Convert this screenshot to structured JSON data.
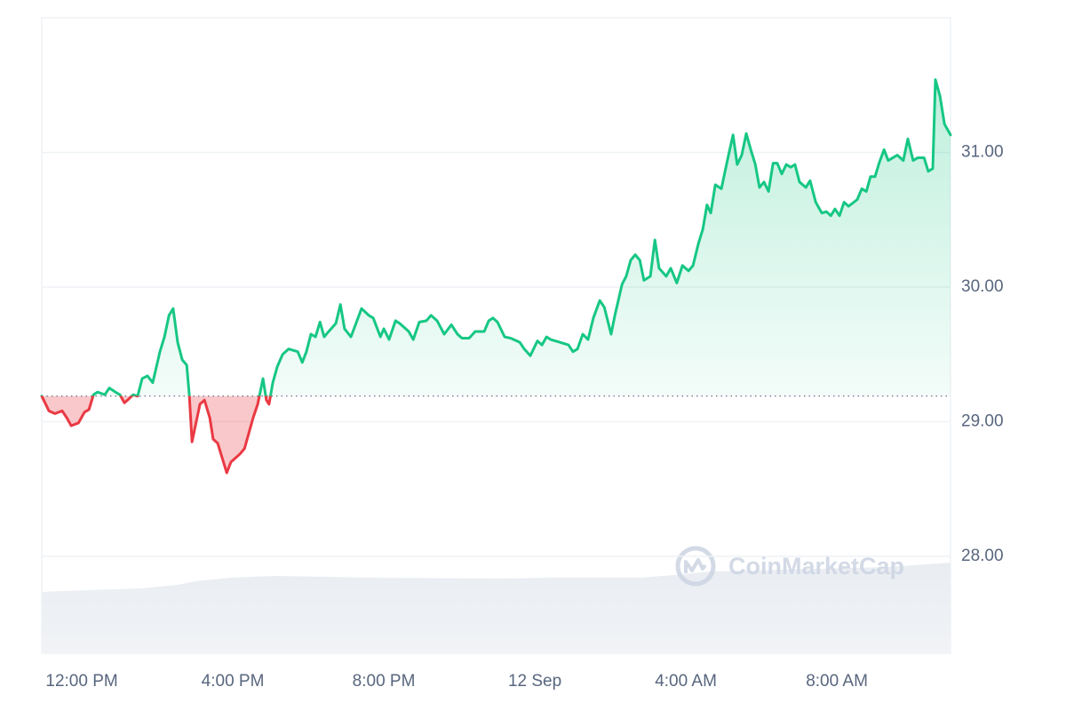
{
  "chart_data": {
    "type": "line",
    "watermark": "CoinMarketCap",
    "up_color": "#16c784",
    "down_color": "#ea3943",
    "reference_line": 29.19,
    "xlim": [
      -1.06,
      23.01
    ],
    "xticks": [
      {
        "value": 0,
        "label": "12:00 PM"
      },
      {
        "value": 4,
        "label": "4:00 PM"
      },
      {
        "value": 8,
        "label": "8:00 PM"
      },
      {
        "value": 12,
        "label": "12 Sep"
      },
      {
        "value": 16,
        "label": "4:00 AM"
      },
      {
        "value": 20,
        "label": "8:00 AM"
      }
    ],
    "ylim": [
      27.28,
      32.0
    ],
    "yticks": [
      {
        "value": 28,
        "label": "28.00"
      },
      {
        "value": 29,
        "label": "29.00"
      },
      {
        "value": 30,
        "label": "30.00"
      },
      {
        "value": 31,
        "label": "31.00"
      }
    ],
    "grid": true,
    "x": [
      -1.06,
      -0.87,
      -0.71,
      -0.52,
      -0.4,
      -0.28,
      -0.09,
      0.07,
      0.19,
      0.31,
      0.42,
      0.61,
      0.73,
      0.89,
      1.01,
      1.13,
      1.25,
      1.36,
      1.48,
      1.6,
      1.74,
      1.88,
      2.07,
      2.19,
      2.31,
      2.42,
      2.54,
      2.66,
      2.78,
      2.85,
      2.92,
      3.01,
      3.13,
      3.25,
      3.39,
      3.48,
      3.6,
      3.72,
      3.84,
      3.95,
      4.07,
      4.19,
      4.31,
      4.42,
      4.54,
      4.66,
      4.8,
      4.89,
      4.96,
      5.06,
      5.18,
      5.32,
      5.48,
      5.72,
      5.84,
      5.95,
      6.07,
      6.19,
      6.31,
      6.42,
      6.54,
      6.73,
      6.85,
      6.96,
      7.13,
      7.25,
      7.41,
      7.6,
      7.72,
      7.91,
      8.0,
      8.14,
      8.31,
      8.42,
      8.54,
      8.66,
      8.78,
      8.94,
      9.13,
      9.25,
      9.41,
      9.6,
      9.79,
      9.95,
      10.07,
      10.26,
      10.42,
      10.66,
      10.78,
      10.89,
      11.01,
      11.2,
      11.36,
      11.6,
      11.72,
      11.88,
      12.07,
      12.19,
      12.31,
      12.42,
      12.66,
      12.89,
      13.01,
      13.13,
      13.27,
      13.41,
      13.55,
      13.72,
      13.84,
      14.02,
      14.12,
      14.31,
      14.42,
      14.54,
      14.66,
      14.78,
      14.89,
      15.06,
      15.18,
      15.29,
      15.48,
      15.6,
      15.76,
      15.91,
      16.07,
      16.19,
      16.33,
      16.45,
      16.56,
      16.66,
      16.78,
      16.94,
      17.13,
      17.25,
      17.36,
      17.48,
      17.6,
      17.72,
      17.84,
      17.95,
      18.07,
      18.19,
      18.31,
      18.42,
      18.54,
      18.66,
      18.78,
      18.89,
      19.01,
      19.18,
      19.29,
      19.44,
      19.6,
      19.72,
      19.84,
      19.95,
      20.07,
      20.19,
      20.31,
      20.54,
      20.66,
      20.78,
      20.89,
      21.01,
      21.13,
      21.25,
      21.36,
      21.48,
      21.6,
      21.76,
      21.88,
      22.02,
      22.14,
      22.31,
      22.42,
      22.54,
      22.61,
      22.73,
      22.85,
      23.01
    ],
    "values": [
      29.19,
      29.08,
      29.06,
      29.08,
      29.03,
      28.97,
      28.99,
      29.07,
      29.09,
      29.2,
      29.22,
      29.2,
      29.25,
      29.22,
      29.2,
      29.14,
      29.17,
      29.2,
      29.19,
      29.32,
      29.34,
      29.29,
      29.52,
      29.63,
      29.79,
      29.84,
      29.59,
      29.46,
      29.42,
      29.19,
      28.85,
      28.97,
      29.13,
      29.16,
      29.03,
      28.87,
      28.84,
      28.73,
      28.62,
      28.7,
      28.73,
      28.76,
      28.8,
      28.91,
      29.03,
      29.13,
      29.32,
      29.16,
      29.13,
      29.29,
      29.41,
      29.5,
      29.54,
      29.52,
      29.44,
      29.52,
      29.65,
      29.63,
      29.74,
      29.63,
      29.67,
      29.73,
      29.87,
      29.69,
      29.63,
      29.72,
      29.84,
      29.79,
      29.77,
      29.63,
      29.69,
      29.61,
      29.75,
      29.73,
      29.7,
      29.67,
      29.61,
      29.74,
      29.75,
      29.79,
      29.75,
      29.65,
      29.72,
      29.65,
      29.62,
      29.62,
      29.67,
      29.67,
      29.75,
      29.77,
      29.74,
      29.63,
      29.62,
      29.59,
      29.54,
      29.49,
      29.6,
      29.57,
      29.63,
      29.61,
      29.59,
      29.57,
      29.52,
      29.54,
      29.65,
      29.61,
      29.77,
      29.9,
      29.85,
      29.65,
      29.79,
      30.02,
      30.08,
      30.2,
      30.24,
      30.2,
      30.05,
      30.08,
      30.35,
      30.14,
      30.08,
      30.14,
      30.03,
      30.16,
      30.12,
      30.16,
      30.32,
      30.43,
      30.61,
      30.55,
      30.76,
      30.73,
      30.98,
      31.13,
      30.91,
      30.98,
      31.14,
      31.02,
      30.91,
      30.74,
      30.78,
      30.71,
      30.92,
      30.92,
      30.84,
      30.91,
      30.89,
      30.91,
      30.78,
      30.74,
      30.79,
      30.63,
      30.55,
      30.56,
      30.53,
      30.58,
      30.53,
      30.63,
      30.6,
      30.65,
      30.73,
      30.71,
      30.82,
      30.82,
      30.93,
      31.02,
      30.94,
      30.96,
      30.98,
      30.94,
      31.1,
      30.94,
      30.96,
      30.96,
      30.86,
      30.88,
      31.54,
      31.42,
      31.21,
      31.13
    ]
  }
}
